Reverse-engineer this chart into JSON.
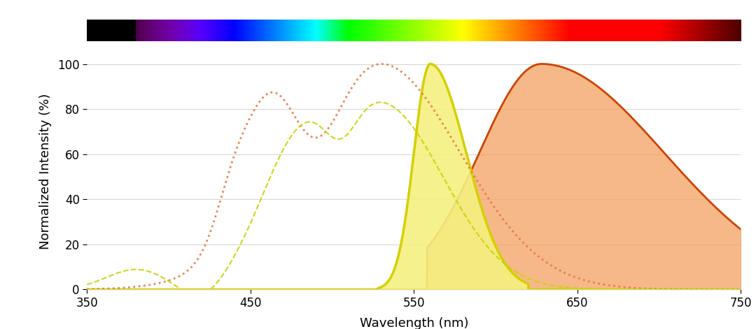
{
  "title": "",
  "xlabel": "Wavelength (nm)",
  "ylabel": "Normalized Intensity (%)",
  "xlim": [
    350,
    750
  ],
  "ylim": [
    0,
    105
  ],
  "xticks": [
    350,
    450,
    550,
    650,
    750
  ],
  "yticks": [
    0,
    20,
    40,
    60,
    80,
    100
  ],
  "background_color": "#ffffff",
  "grid_color": "#d8d8d8",
  "curves": {
    "yellow_dashed": {
      "color": "#c8d400",
      "linewidth": 1.5,
      "alpha": 0.9
    },
    "orange_dashed": {
      "color": "#e87848",
      "linewidth": 1.5,
      "alpha": 0.9
    },
    "yellow_solid": {
      "color": "#d4d000",
      "fill_color": "#f4f080",
      "fill_alpha": 0.9,
      "linewidth": 2.5
    },
    "orange_solid": {
      "color": "#cc4400",
      "fill_color": "#f4a060",
      "fill_alpha": 0.75,
      "linewidth": 2.0
    }
  },
  "spectrum_bar": {
    "wl_start": 350,
    "wl_end": 750
  }
}
